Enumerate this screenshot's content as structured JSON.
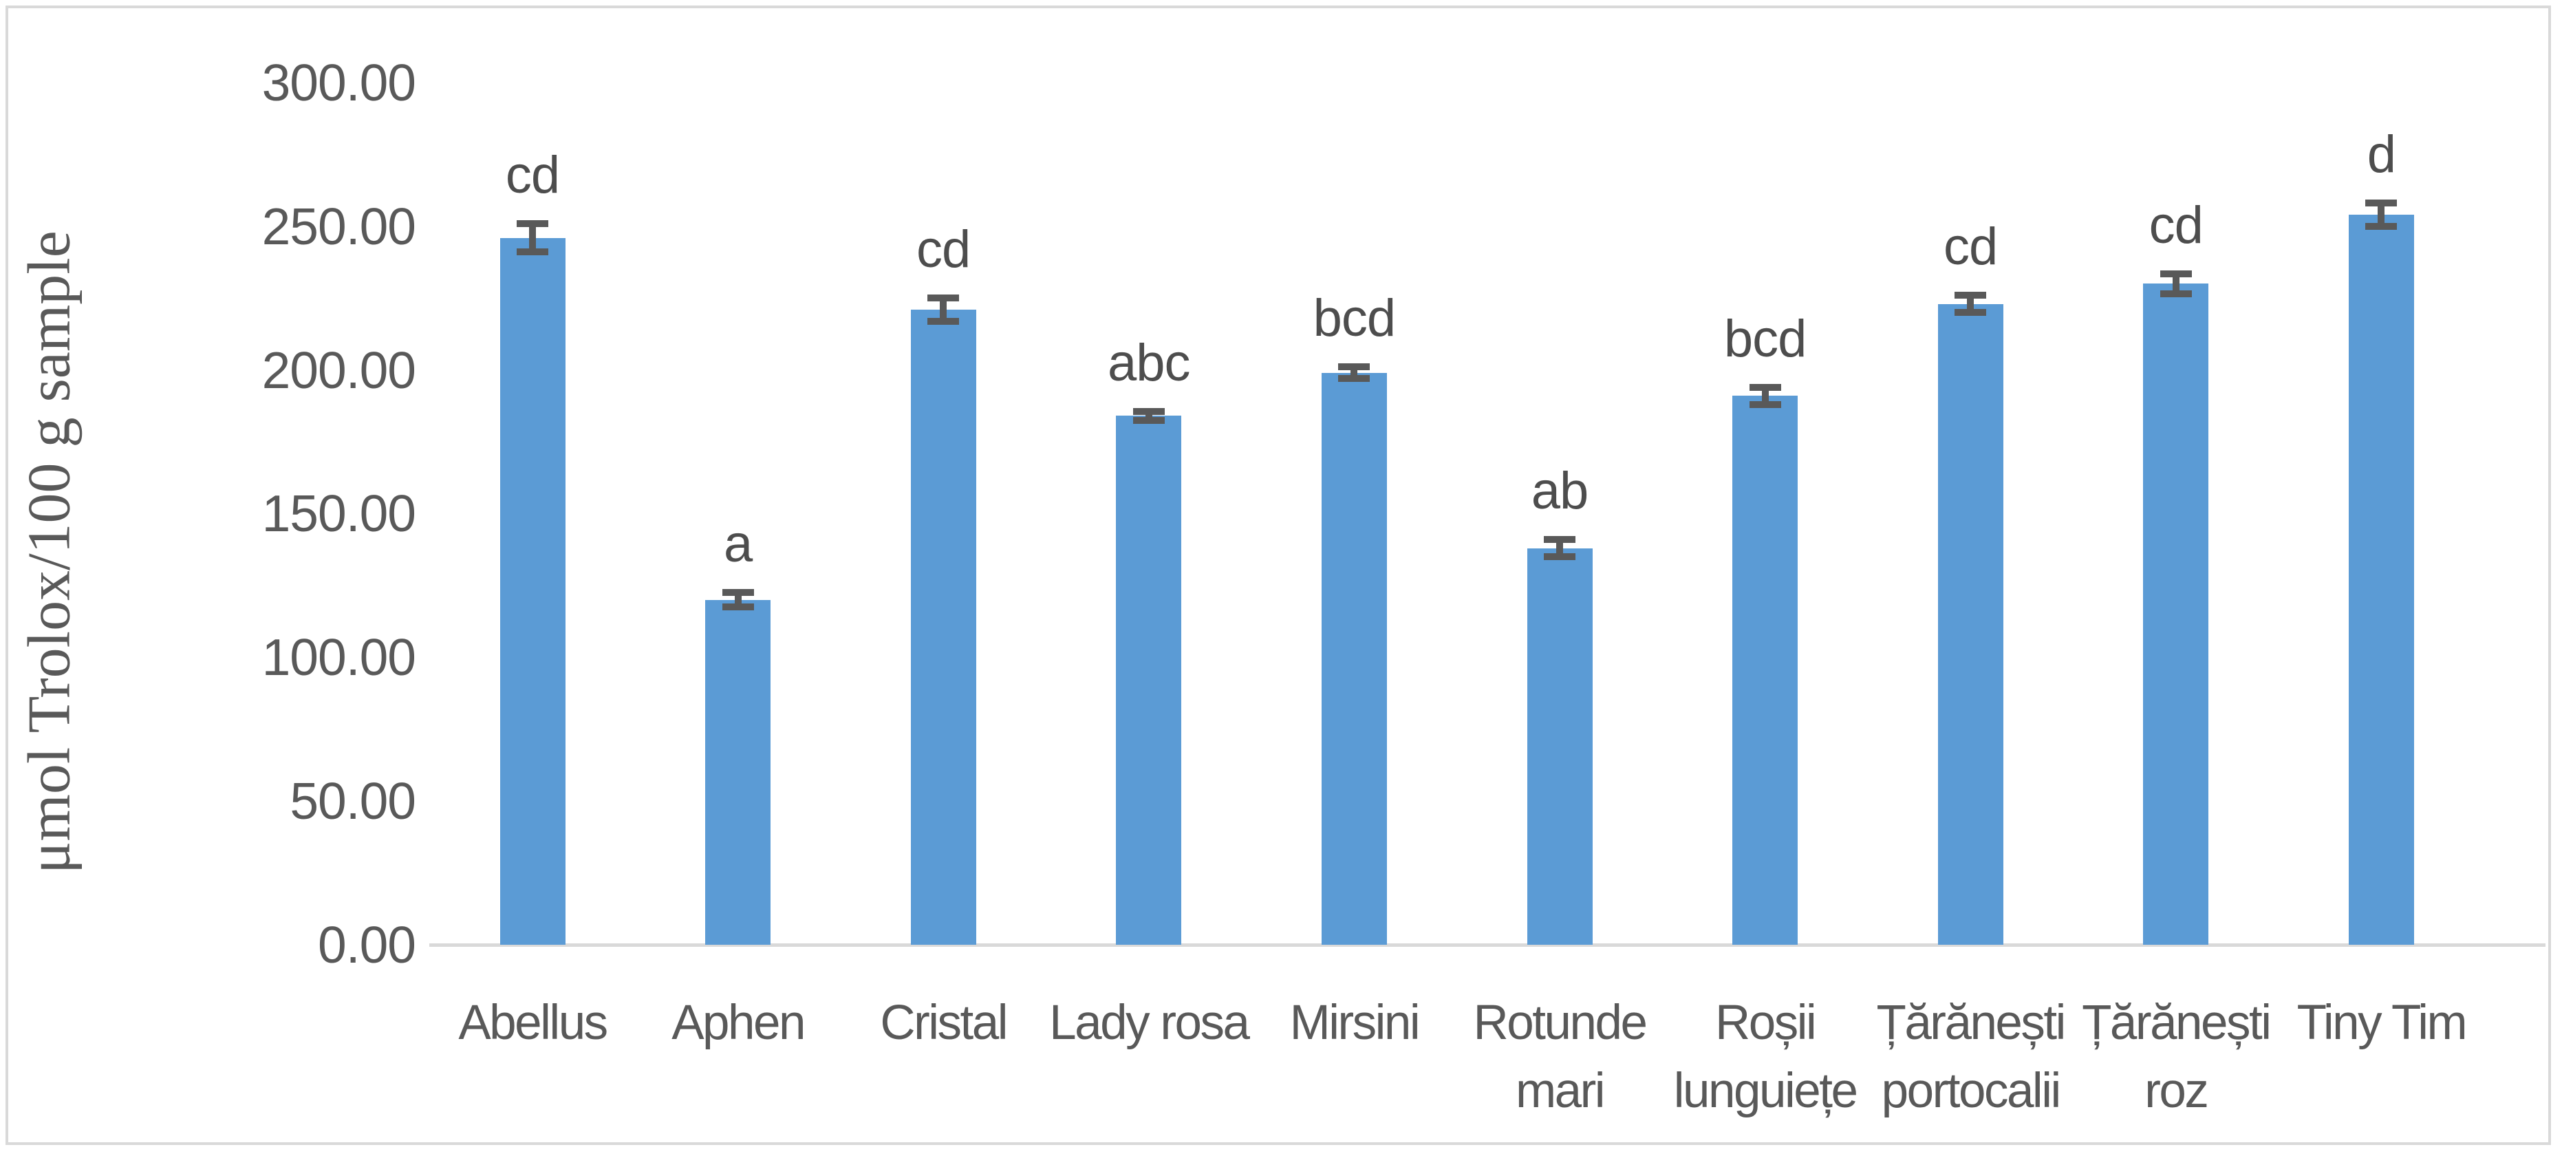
{
  "figure": {
    "background": "#ffffff",
    "border_color": "#d9d9d9"
  },
  "chart_data": {
    "type": "bar",
    "title": "",
    "xlabel": "",
    "ylabel": "μmol Trolox/100 g sample",
    "ylim": [
      0,
      300
    ],
    "ytick_step": 50,
    "ytick_labels": [
      "0.00",
      "50.00",
      "100.00",
      "150.00",
      "200.00",
      "250.00",
      "300.00"
    ],
    "grid": false,
    "legend": "none",
    "bar_color": "#5b9bd5",
    "error_bar_color": "#595959",
    "axis_line_color": "#d9d9d9",
    "text_color": "#595959",
    "categories": [
      "Abellus",
      "Aphen",
      "Cristal",
      "Lady rosa",
      "Mirsini",
      "Rotunde mari",
      "Roșii lunguiețe",
      "Țărănești portocalii",
      "Țărănești roz",
      "Tiny Tim"
    ],
    "category_label_lines": [
      [
        "Abellus"
      ],
      [
        "Aphen"
      ],
      [
        "Cristal"
      ],
      [
        "Lady rosa"
      ],
      [
        "Mirsini"
      ],
      [
        "Rotunde",
        "mari"
      ],
      [
        "Roșii",
        "lunguiețe"
      ],
      [
        "Țărănești",
        "portocalii"
      ],
      [
        "Țărănești",
        "roz"
      ],
      [
        "Tiny Tim"
      ]
    ],
    "values": [
      246,
      120,
      221,
      184,
      199,
      138,
      191,
      223,
      230,
      254
    ],
    "errors": [
      5,
      2.5,
      4,
      1.5,
      2,
      3,
      3,
      3,
      3.5,
      4
    ],
    "sig_letters": [
      "cd",
      "a",
      "cd",
      "abc",
      "bcd",
      "ab",
      "bcd",
      "cd",
      "cd",
      "d"
    ]
  }
}
